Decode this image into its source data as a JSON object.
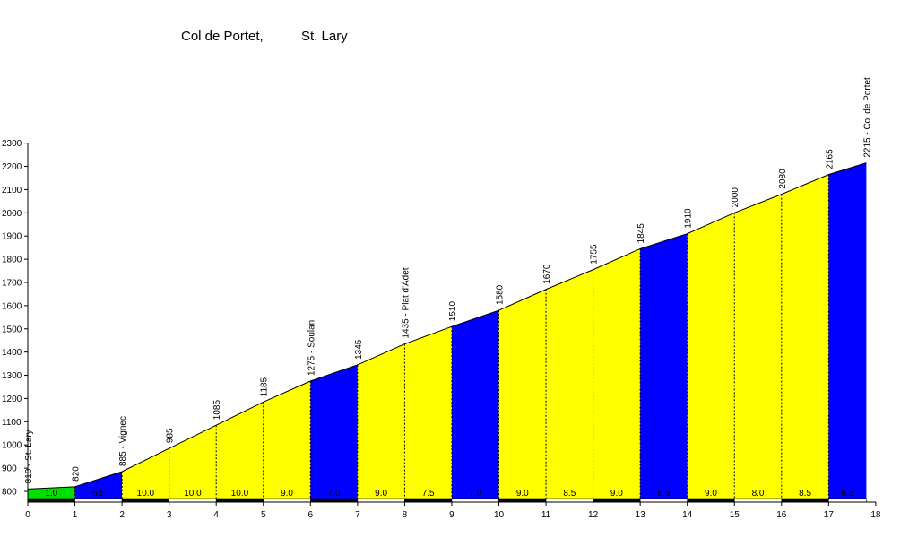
{
  "chart_data": {
    "type": "area",
    "title_parts": [
      "Col de Portet,",
      "St. Lary"
    ],
    "xlabel": "",
    "ylabel": "",
    "xlim": [
      0,
      18
    ],
    "ylim": [
      780,
      2300
    ],
    "x_ticks": [
      0,
      1,
      2,
      3,
      4,
      5,
      6,
      7,
      8,
      9,
      10,
      11,
      12,
      13,
      14,
      15,
      16,
      17,
      18
    ],
    "y_ticks": [
      800,
      900,
      1000,
      1100,
      1200,
      1300,
      1400,
      1500,
      1600,
      1700,
      1800,
      1900,
      2000,
      2100,
      2200,
      2300
    ],
    "profile": [
      {
        "x": 0,
        "y": 810,
        "label": "810 - St. Lary"
      },
      {
        "x": 1,
        "y": 820,
        "label": "820"
      },
      {
        "x": 2,
        "y": 885,
        "label": "885 - Vignec"
      },
      {
        "x": 3,
        "y": 985,
        "label": "985"
      },
      {
        "x": 4,
        "y": 1085,
        "label": "1085"
      },
      {
        "x": 5,
        "y": 1185,
        "label": "1185"
      },
      {
        "x": 6,
        "y": 1275,
        "label": "1275 - Soulan"
      },
      {
        "x": 7,
        "y": 1345,
        "label": "1345"
      },
      {
        "x": 8,
        "y": 1435,
        "label": "1435 - Plat d'Adet"
      },
      {
        "x": 9,
        "y": 1510,
        "label": "1510"
      },
      {
        "x": 10,
        "y": 1580,
        "label": "1580"
      },
      {
        "x": 11,
        "y": 1670,
        "label": "1670"
      },
      {
        "x": 12,
        "y": 1755,
        "label": "1755"
      },
      {
        "x": 13,
        "y": 1845,
        "label": "1845"
      },
      {
        "x": 14,
        "y": 1910,
        "label": "1910"
      },
      {
        "x": 15,
        "y": 2000,
        "label": "2000"
      },
      {
        "x": 16,
        "y": 2080,
        "label": "2080"
      },
      {
        "x": 17,
        "y": 2165,
        "label": "2165"
      },
      {
        "x": 17.8,
        "y": 2215,
        "label": "2215 - Col de Portet"
      }
    ],
    "segments": [
      {
        "from": 0,
        "to": 1,
        "gradient": "1.0",
        "color": "#00e000"
      },
      {
        "from": 1,
        "to": 2,
        "gradient": "6.5",
        "color": "#0000ff"
      },
      {
        "from": 2,
        "to": 3,
        "gradient": "10.0",
        "color": "#ffff00"
      },
      {
        "from": 3,
        "to": 4,
        "gradient": "10.0",
        "color": "#ffff00"
      },
      {
        "from": 4,
        "to": 5,
        "gradient": "10.0",
        "color": "#ffff00"
      },
      {
        "from": 5,
        "to": 6,
        "gradient": "9.0",
        "color": "#ffff00"
      },
      {
        "from": 6,
        "to": 7,
        "gradient": "7.0",
        "color": "#0000ff"
      },
      {
        "from": 7,
        "to": 8,
        "gradient": "9.0",
        "color": "#ffff00"
      },
      {
        "from": 8,
        "to": 9,
        "gradient": "7.5",
        "color": "#ffff00"
      },
      {
        "from": 9,
        "to": 10,
        "gradient": "7.0",
        "color": "#0000ff"
      },
      {
        "from": 10,
        "to": 11,
        "gradient": "9.0",
        "color": "#ffff00"
      },
      {
        "from": 11,
        "to": 12,
        "gradient": "8.5",
        "color": "#ffff00"
      },
      {
        "from": 12,
        "to": 13,
        "gradient": "9.0",
        "color": "#ffff00"
      },
      {
        "from": 13,
        "to": 14,
        "gradient": "6.5",
        "color": "#0000ff"
      },
      {
        "from": 14,
        "to": 15,
        "gradient": "9.0",
        "color": "#ffff00"
      },
      {
        "from": 15,
        "to": 16,
        "gradient": "8.0",
        "color": "#ffff00"
      },
      {
        "from": 16,
        "to": 17,
        "gradient": "8.5",
        "color": "#ffff00"
      },
      {
        "from": 17,
        "to": 17.8,
        "gradient": "6.3",
        "color": "#0000ff"
      }
    ],
    "grid": false,
    "legend": "none"
  }
}
